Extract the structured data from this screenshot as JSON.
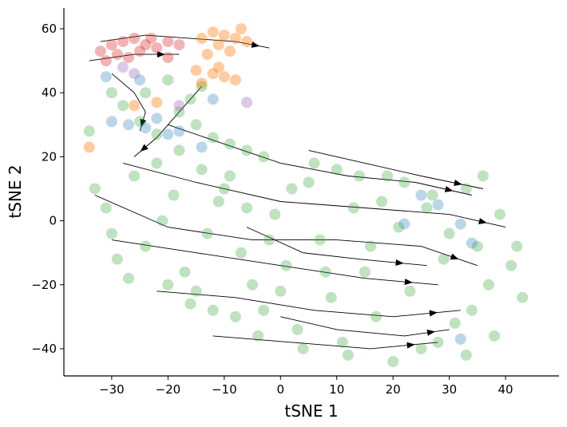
{
  "chart_data": {
    "type": "scatter",
    "title": "",
    "xlabel": "tSNE 1",
    "ylabel": "tSNE 2",
    "xlim": [
      -38.5,
      49.5
    ],
    "ylim": [
      -48.5,
      66.5
    ],
    "xticks": [
      -30,
      -20,
      -10,
      0,
      10,
      20,
      30,
      40
    ],
    "yticks": [
      -40,
      -20,
      0,
      20,
      40,
      60
    ],
    "xtick_labels": [
      "−30",
      "−20",
      "−10",
      "0",
      "10",
      "20",
      "30",
      "40"
    ],
    "ytick_labels": [
      "−40",
      "−20",
      "0",
      "20",
      "40",
      "60"
    ],
    "grid": false,
    "legend": "none",
    "overlay": "velocity streamlines with arrowheads (black)",
    "series": [
      {
        "color": "#2ca02c",
        "alpha": 0.3,
        "points": [
          [
            -30,
            40
          ],
          [
            -28,
            36
          ],
          [
            -25,
            31
          ],
          [
            -22,
            27
          ],
          [
            -18,
            34
          ],
          [
            -15,
            30
          ],
          [
            -12,
            26
          ],
          [
            -9,
            24
          ],
          [
            -6,
            22
          ],
          [
            -3,
            20
          ],
          [
            -33,
            10
          ],
          [
            -31,
            4
          ],
          [
            -30,
            -4
          ],
          [
            -29,
            -12
          ],
          [
            -27,
            -18
          ],
          [
            -24,
            -8
          ],
          [
            -21,
            0
          ],
          [
            -19,
            8
          ],
          [
            -17,
            -16
          ],
          [
            -15,
            -22
          ],
          [
            -13,
            -4
          ],
          [
            -11,
            6
          ],
          [
            -9,
            14
          ],
          [
            -7,
            -10
          ],
          [
            -5,
            -20
          ],
          [
            -3,
            -28
          ],
          [
            -1,
            2
          ],
          [
            1,
            -14
          ],
          [
            3,
            -34
          ],
          [
            5,
            12
          ],
          [
            7,
            -6
          ],
          [
            9,
            -24
          ],
          [
            11,
            -38
          ],
          [
            13,
            4
          ],
          [
            15,
            -16
          ],
          [
            17,
            -30
          ],
          [
            19,
            14
          ],
          [
            21,
            -2
          ],
          [
            23,
            -22
          ],
          [
            25,
            -40
          ],
          [
            27,
            8
          ],
          [
            29,
            -12
          ],
          [
            31,
            -32
          ],
          [
            33,
            10
          ],
          [
            35,
            -8
          ],
          [
            37,
            -20
          ],
          [
            39,
            2
          ],
          [
            41,
            -14
          ],
          [
            43,
            -24
          ],
          [
            -26,
            14
          ],
          [
            -22,
            18
          ],
          [
            -18,
            22
          ],
          [
            -14,
            16
          ],
          [
            -10,
            10
          ],
          [
            -6,
            4
          ],
          [
            -2,
            -6
          ],
          [
            2,
            10
          ],
          [
            6,
            18
          ],
          [
            10,
            16
          ],
          [
            14,
            14
          ],
          [
            18,
            6
          ],
          [
            22,
            12
          ],
          [
            26,
            4
          ],
          [
            30,
            -4
          ],
          [
            34,
            -28
          ],
          [
            38,
            -36
          ],
          [
            -20,
            -20
          ],
          [
            -12,
            -28
          ],
          [
            -4,
            -36
          ],
          [
            4,
            -40
          ],
          [
            12,
            -42
          ],
          [
            20,
            -44
          ],
          [
            28,
            -38
          ],
          [
            16,
            -8
          ],
          [
            8,
            -16
          ],
          [
            0,
            -22
          ],
          [
            -8,
            -30
          ],
          [
            -16,
            -26
          ],
          [
            36,
            14
          ],
          [
            42,
            -8
          ],
          [
            33,
            -42
          ],
          [
            -34,
            28
          ],
          [
            -24,
            40
          ],
          [
            -20,
            44
          ],
          [
            -16,
            38
          ],
          [
            -14,
            42
          ]
        ]
      },
      {
        "color": "#1f77b4",
        "alpha": 0.3,
        "points": [
          [
            -30,
            31
          ],
          [
            -27,
            30
          ],
          [
            -24,
            29
          ],
          [
            -22,
            32
          ],
          [
            -20,
            27
          ],
          [
            -18,
            28
          ],
          [
            -14,
            23
          ],
          [
            -25,
            44
          ],
          [
            -31,
            45
          ],
          [
            -12,
            38
          ],
          [
            25,
            8
          ],
          [
            28,
            5
          ],
          [
            32,
            -1
          ],
          [
            34,
            -7
          ],
          [
            22,
            -1
          ],
          [
            32,
            -37
          ]
        ]
      },
      {
        "color": "#ff7f0e",
        "alpha": 0.4,
        "points": [
          [
            -12,
            59
          ],
          [
            -10,
            58
          ],
          [
            -8,
            57
          ],
          [
            -6,
            56
          ],
          [
            -14,
            57
          ],
          [
            -11,
            55
          ],
          [
            -7,
            60
          ],
          [
            -9,
            53
          ],
          [
            -13,
            52
          ],
          [
            -15,
            47
          ],
          [
            -12,
            46
          ],
          [
            -10,
            45
          ],
          [
            -8,
            44
          ],
          [
            -14,
            43
          ],
          [
            -11,
            48
          ],
          [
            -26,
            36
          ],
          [
            -22,
            37
          ],
          [
            -34,
            23
          ]
        ]
      },
      {
        "color": "#d62728",
        "alpha": 0.35,
        "points": [
          [
            -30,
            55
          ],
          [
            -28,
            56
          ],
          [
            -26,
            57
          ],
          [
            -24,
            55
          ],
          [
            -22,
            54
          ],
          [
            -20,
            56
          ],
          [
            -18,
            55
          ],
          [
            -32,
            53
          ],
          [
            -29,
            52
          ],
          [
            -27,
            51
          ],
          [
            -25,
            53
          ],
          [
            -23,
            57
          ],
          [
            -31,
            50
          ],
          [
            -20,
            51
          ]
        ]
      },
      {
        "color": "#9467bd",
        "alpha": 0.35,
        "points": [
          [
            -28,
            48
          ],
          [
            -26,
            46
          ],
          [
            -6,
            37
          ],
          [
            -18,
            36
          ]
        ]
      }
    ]
  }
}
